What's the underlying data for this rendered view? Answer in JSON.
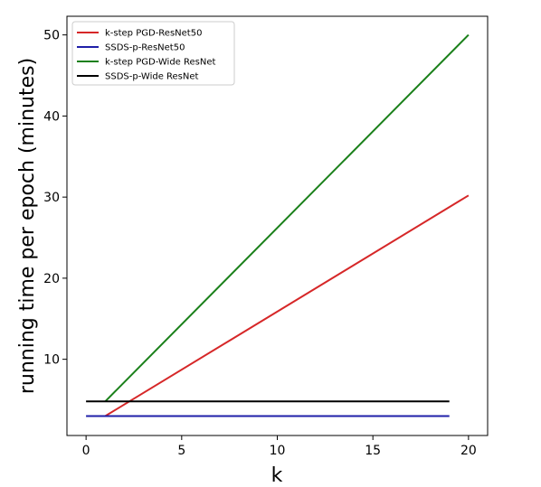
{
  "chart_data": {
    "type": "line",
    "title": "",
    "xlabel": "k",
    "ylabel": "running time per epoch (minutes)",
    "xlim": [
      -1,
      21
    ],
    "ylim": [
      0.6,
      52.3
    ],
    "xticks": [
      0,
      5,
      10,
      15,
      20
    ],
    "yticks": [
      10,
      20,
      30,
      40,
      50
    ],
    "xtick_labels": [
      "0",
      "5",
      "10",
      "15",
      "20"
    ],
    "ytick_labels": [
      "10",
      "20",
      "30",
      "40",
      "50"
    ],
    "grid": false,
    "legend_position": "top-left",
    "series": [
      {
        "name": "k-step PGD-ResNet50",
        "color": "#d62728",
        "x": [
          1,
          20
        ],
        "y": [
          3.0,
          30.2
        ]
      },
      {
        "name": "SSDS-p-ResNet50",
        "color": "#1f1fa8",
        "x": [
          0,
          19
        ],
        "y": [
          3.0,
          3.0
        ]
      },
      {
        "name": "k-step PGD-Wide ResNet",
        "color": "#1a801a",
        "x": [
          1,
          20
        ],
        "y": [
          4.8,
          50.0
        ]
      },
      {
        "name": "SSDS-p-Wide ResNet",
        "color": "#000000",
        "x": [
          0,
          19
        ],
        "y": [
          4.8,
          4.8
        ]
      }
    ]
  }
}
